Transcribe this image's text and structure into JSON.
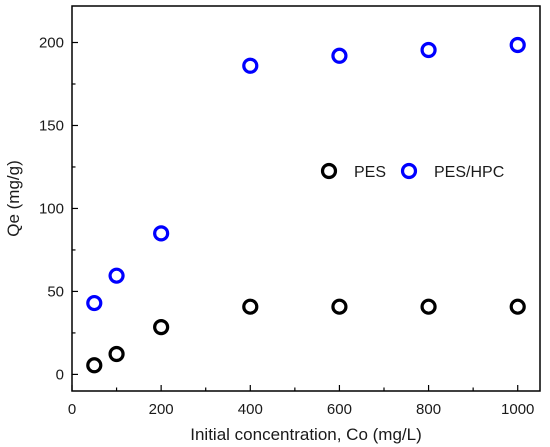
{
  "chart_data": {
    "type": "scatter",
    "xlabel": "Initial concentration, Co (mg/L)",
    "ylabel": "Qe (mg/g)",
    "xlim": [
      0,
      1050
    ],
    "ylim": [
      -10,
      222
    ],
    "xticks": [
      0,
      200,
      400,
      600,
      800,
      1000
    ],
    "yticks": [
      0,
      50,
      100,
      150,
      200
    ],
    "grid": false,
    "legend_position": "center-right",
    "series": [
      {
        "name": "PES",
        "color": "#000000",
        "marker": "open-circle",
        "points": [
          [
            50,
            5.5
          ],
          [
            100,
            12.3
          ],
          [
            200,
            28.5
          ],
          [
            400,
            40.8
          ],
          [
            600,
            40.8
          ],
          [
            800,
            40.8
          ],
          [
            1000,
            40.8
          ]
        ]
      },
      {
        "name": "PES/HPC",
        "color": "#0000ff",
        "marker": "open-circle",
        "points": [
          [
            50,
            43
          ],
          [
            100,
            59.5
          ],
          [
            200,
            85
          ],
          [
            400,
            186
          ],
          [
            600,
            192
          ],
          [
            800,
            195.5
          ],
          [
            1000,
            198.5
          ]
        ]
      }
    ]
  }
}
